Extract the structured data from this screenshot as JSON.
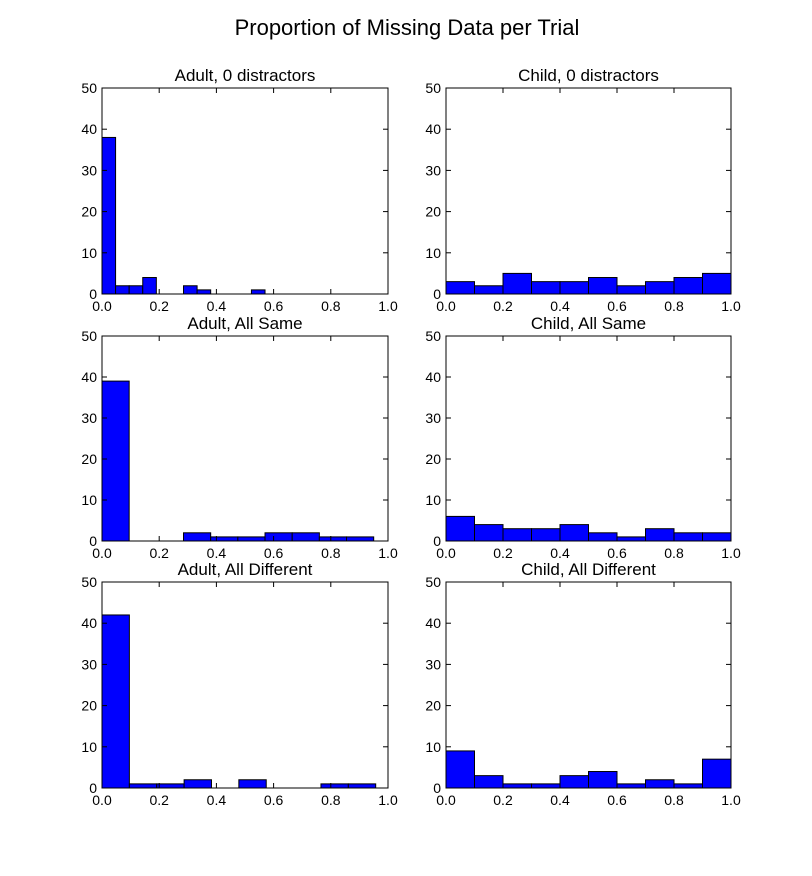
{
  "figure": {
    "title": "Proportion of Missing Data per Trial",
    "bar_color": "#0000ff",
    "edge_color": "#000000"
  },
  "chart_data": [
    {
      "type": "bar",
      "title": "Adult, 0 distractors",
      "bin_width": 0.0475,
      "bin_starts": [
        0.0,
        0.0475,
        0.095,
        0.1425,
        0.19,
        0.2375,
        0.285,
        0.3325,
        0.38,
        0.4275,
        0.475,
        0.5225,
        0.57,
        0.6175,
        0.665,
        0.7125,
        0.76,
        0.8075,
        0.855,
        0.9025
      ],
      "values": [
        38,
        2,
        2,
        4,
        0,
        0,
        2,
        1,
        0,
        0,
        0,
        1,
        0,
        0,
        0,
        0,
        0,
        0,
        0,
        0
      ],
      "xlim": [
        0.0,
        1.0
      ],
      "ylim": [
        0,
        50
      ],
      "xticks": [
        "0.0",
        "0.2",
        "0.4",
        "0.6",
        "0.8",
        "1.0"
      ],
      "yticks": [
        "0",
        "10",
        "20",
        "30",
        "40",
        "50"
      ]
    },
    {
      "type": "bar",
      "title": "Child, 0 distractors",
      "bin_width": 0.1,
      "bin_starts": [
        0.0,
        0.1,
        0.2,
        0.3,
        0.4,
        0.5,
        0.6,
        0.7,
        0.8,
        0.9
      ],
      "values": [
        3,
        2,
        5,
        3,
        3,
        4,
        2,
        3,
        4,
        5
      ],
      "xlim": [
        0.0,
        1.0
      ],
      "ylim": [
        0,
        50
      ],
      "xticks": [
        "0.0",
        "0.2",
        "0.4",
        "0.6",
        "0.8",
        "1.0"
      ],
      "yticks": [
        "0",
        "10",
        "20",
        "30",
        "40",
        "50"
      ]
    },
    {
      "type": "bar",
      "title": "Adult, All Same",
      "bin_width": 0.095,
      "bin_starts": [
        0.0,
        0.095,
        0.19,
        0.285,
        0.38,
        0.475,
        0.57,
        0.665,
        0.76,
        0.855
      ],
      "values": [
        39,
        0,
        0,
        2,
        1,
        1,
        2,
        2,
        1,
        1
      ],
      "xlim": [
        0.0,
        1.0
      ],
      "ylim": [
        0,
        50
      ],
      "xticks": [
        "0.0",
        "0.2",
        "0.4",
        "0.6",
        "0.8",
        "1.0"
      ],
      "yticks": [
        "0",
        "10",
        "20",
        "30",
        "40",
        "50"
      ]
    },
    {
      "type": "bar",
      "title": "Child, All Same",
      "bin_width": 0.1,
      "bin_starts": [
        0.0,
        0.1,
        0.2,
        0.3,
        0.4,
        0.5,
        0.6,
        0.7,
        0.8,
        0.9
      ],
      "values": [
        6,
        4,
        3,
        3,
        4,
        2,
        1,
        3,
        2,
        2
      ],
      "xlim": [
        0.0,
        1.0
      ],
      "ylim": [
        0,
        50
      ],
      "xticks": [
        "0.0",
        "0.2",
        "0.4",
        "0.6",
        "0.8",
        "1.0"
      ],
      "yticks": [
        "0",
        "10",
        "20",
        "30",
        "40",
        "50"
      ]
    },
    {
      "type": "bar",
      "title": "Adult, All Different",
      "bin_width": 0.0957,
      "bin_starts": [
        0.0,
        0.0957,
        0.1914,
        0.2871,
        0.3828,
        0.4785,
        0.5742,
        0.6699,
        0.7656,
        0.8613
      ],
      "values": [
        42,
        1,
        1,
        2,
        0,
        2,
        0,
        0,
        1,
        1
      ],
      "xlim": [
        0.0,
        1.0
      ],
      "ylim": [
        0,
        50
      ],
      "xticks": [
        "0.0",
        "0.2",
        "0.4",
        "0.6",
        "0.8",
        "1.0"
      ],
      "yticks": [
        "0",
        "10",
        "20",
        "30",
        "40",
        "50"
      ]
    },
    {
      "type": "bar",
      "title": "Child, All Different",
      "bin_width": 0.1,
      "bin_starts": [
        0.0,
        0.1,
        0.2,
        0.3,
        0.4,
        0.5,
        0.6,
        0.7,
        0.8,
        0.9
      ],
      "values": [
        9,
        3,
        1,
        1,
        3,
        4,
        1,
        2,
        1,
        7
      ],
      "xlim": [
        0.0,
        1.0
      ],
      "ylim": [
        0,
        50
      ],
      "xticks": [
        "0.0",
        "0.2",
        "0.4",
        "0.6",
        "0.8",
        "1.0"
      ],
      "yticks": [
        "0",
        "10",
        "20",
        "30",
        "40",
        "50"
      ]
    }
  ]
}
